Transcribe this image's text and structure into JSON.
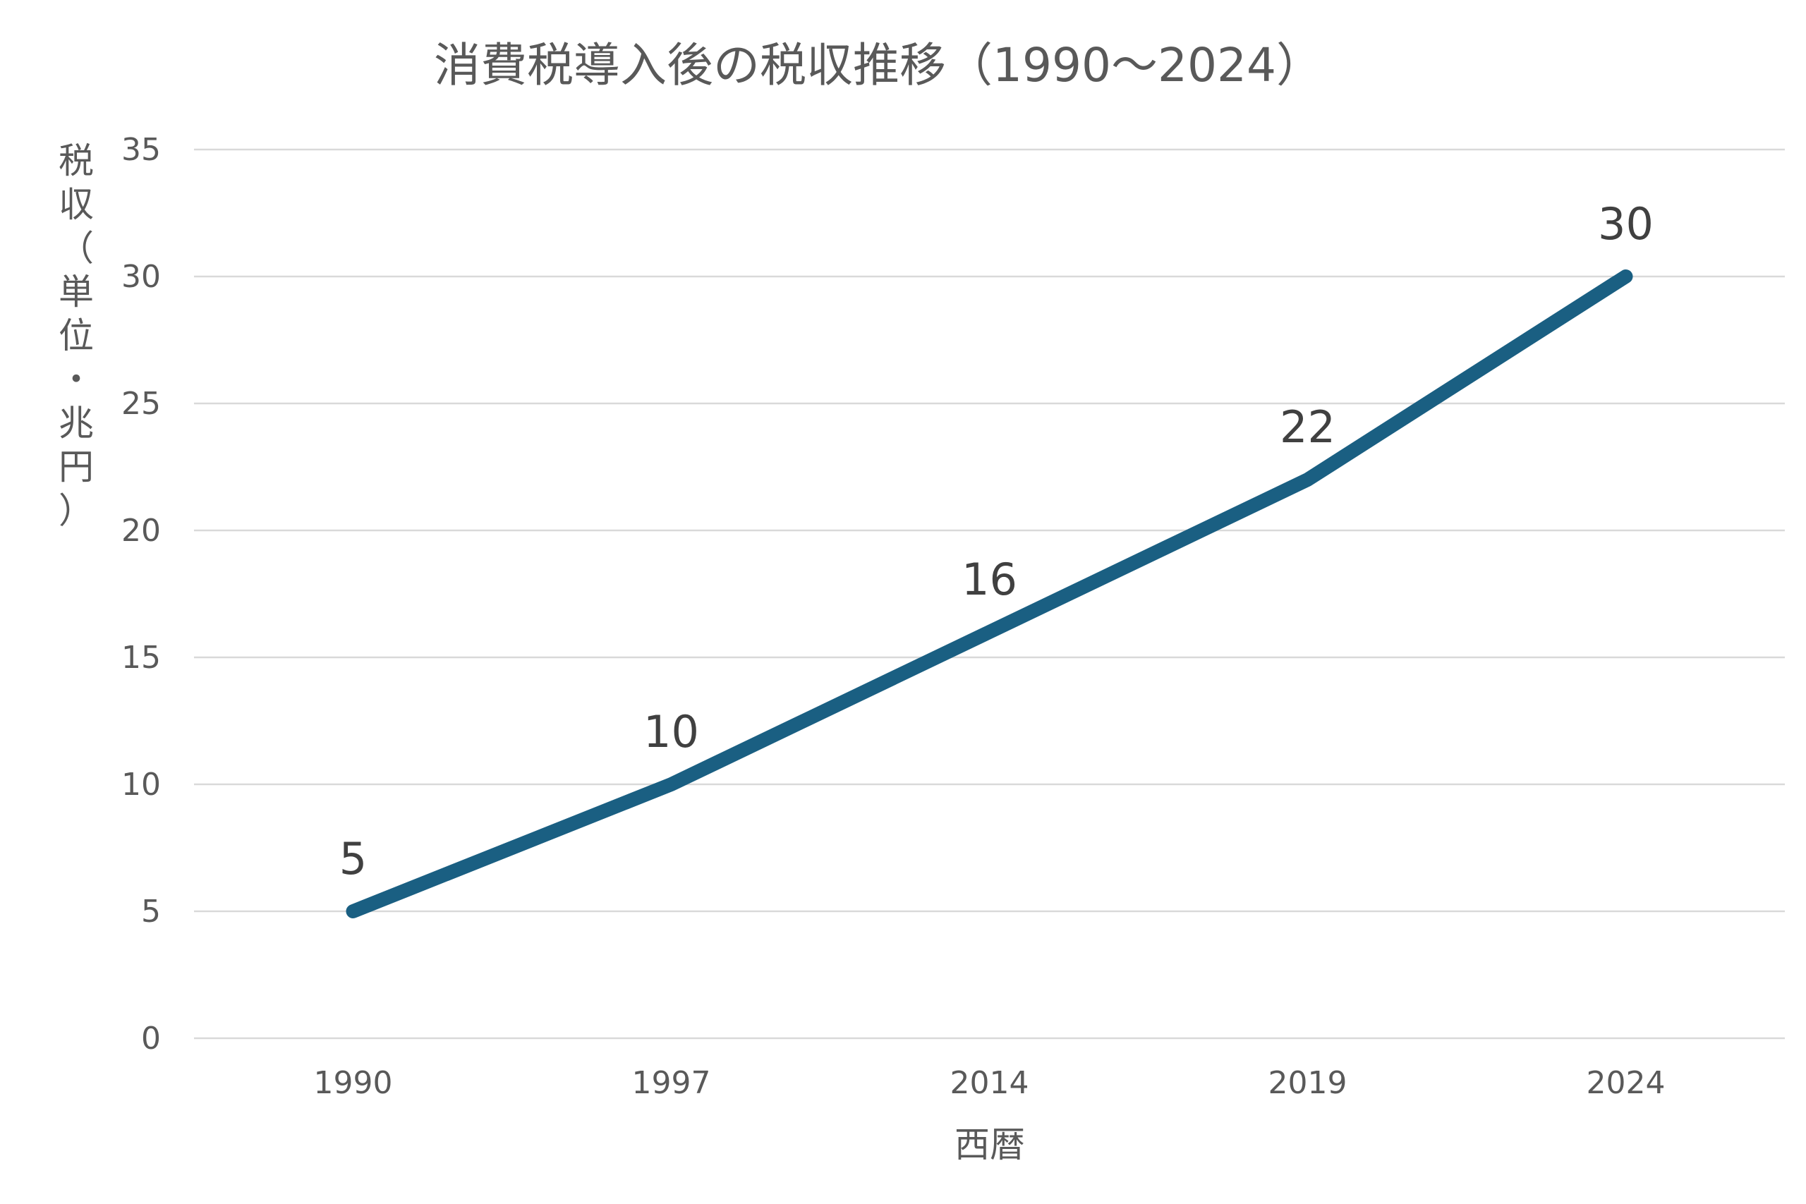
{
  "chart_data": {
    "type": "line",
    "title": "消費税導入後の税収推移（1990～2024）",
    "xlabel": "西暦",
    "ylabel": "税収（単位・兆円）",
    "categories": [
      "1990",
      "1997",
      "2014",
      "2019",
      "2024"
    ],
    "series": [
      {
        "values": [
          5,
          10,
          16,
          22,
          30
        ],
        "color": "#1a5f82"
      }
    ],
    "ylim": [
      0,
      35
    ],
    "yticks": [
      0,
      5,
      10,
      15,
      20,
      25,
      30,
      35
    ],
    "grid": true,
    "data_labels": true,
    "legend": "none"
  }
}
